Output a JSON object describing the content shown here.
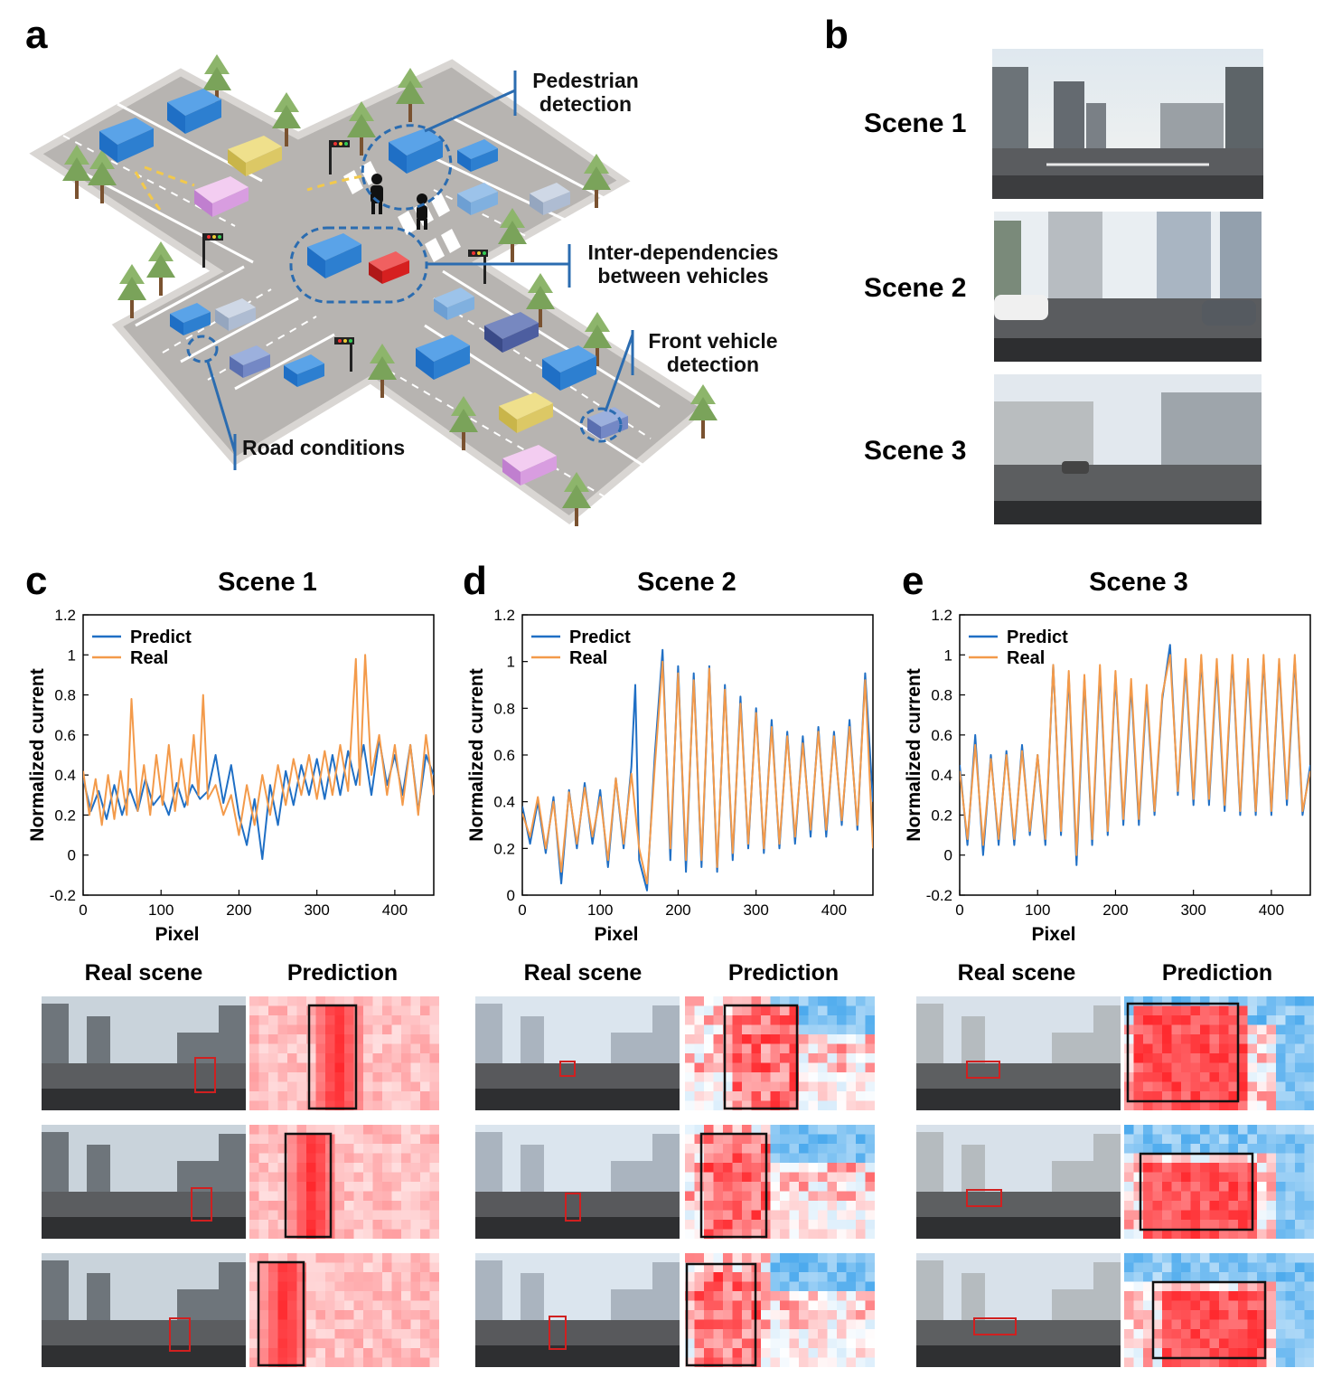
{
  "panels": {
    "a": "a",
    "b": "b",
    "c": "c",
    "d": "d",
    "e": "e"
  },
  "illustration": {
    "callouts": {
      "pedestrian": [
        "Pedestrian",
        "detection"
      ],
      "inter": [
        "Inter-dependencies",
        "between vehicles"
      ],
      "front": [
        "Front vehicle",
        "detection"
      ],
      "road": [
        "Road conditions"
      ]
    },
    "colors": {
      "road": "#b3b0ad",
      "grass": "#e6e6e6",
      "car_blue": "#2d7fd0",
      "car_red": "#d62020",
      "callout_line": "#2b6cb0",
      "arrow": "#f2c94c"
    }
  },
  "scenes_b": [
    "Scene 1",
    "Scene 2",
    "Scene 3"
  ],
  "columns": {
    "real": "Real scene",
    "prediction": "Prediction"
  },
  "colors": {
    "predict": "#1f6fc5",
    "real": "#f39a4a",
    "heat_hot": "#e8282a",
    "heat_cold": "#3a9be8",
    "box_red": "#d02020",
    "box_black": "#111111"
  },
  "chart_data": [
    {
      "type": "line",
      "title": "Scene 1",
      "xlabel": "Pixel",
      "ylabel": "Normalized current",
      "xlim": [
        0,
        450
      ],
      "ylim": [
        -0.2,
        1.2
      ],
      "xticks": [
        0,
        100,
        200,
        300,
        400
      ],
      "yticks": [
        -0.2,
        0,
        0.2,
        0.4,
        0.6,
        0.8,
        1,
        1.2
      ],
      "ytick_labels": [
        "-0.2",
        "0",
        "0.2",
        "0.4",
        "0.6",
        "0.8",
        "1",
        "1.2"
      ],
      "legend": "top-left",
      "series": [
        {
          "name": "Predict",
          "x": [
            0,
            10,
            20,
            30,
            40,
            50,
            60,
            70,
            80,
            90,
            100,
            110,
            120,
            130,
            140,
            150,
            160,
            170,
            180,
            190,
            200,
            210,
            220,
            230,
            240,
            250,
            260,
            270,
            280,
            290,
            300,
            310,
            320,
            330,
            340,
            350,
            360,
            370,
            380,
            390,
            400,
            410,
            420,
            430,
            440,
            450
          ],
          "y": [
            0.38,
            0.22,
            0.32,
            0.18,
            0.35,
            0.2,
            0.33,
            0.22,
            0.38,
            0.25,
            0.3,
            0.2,
            0.36,
            0.24,
            0.35,
            0.28,
            0.32,
            0.5,
            0.26,
            0.45,
            0.2,
            0.05,
            0.28,
            -0.02,
            0.35,
            0.15,
            0.42,
            0.25,
            0.45,
            0.3,
            0.48,
            0.28,
            0.5,
            0.3,
            0.52,
            0.35,
            0.55,
            0.3,
            0.58,
            0.35,
            0.5,
            0.3,
            0.55,
            0.22,
            0.5,
            0.4
          ]
        },
        {
          "name": "Real",
          "x": [
            0,
            8,
            16,
            24,
            32,
            40,
            48,
            56,
            62,
            70,
            78,
            86,
            94,
            102,
            110,
            118,
            126,
            134,
            142,
            148,
            154,
            160,
            170,
            180,
            190,
            200,
            210,
            220,
            230,
            240,
            250,
            260,
            270,
            280,
            290,
            300,
            310,
            320,
            330,
            340,
            350,
            355,
            362,
            370,
            380,
            390,
            400,
            410,
            420,
            430,
            440,
            450
          ],
          "y": [
            0.42,
            0.2,
            0.38,
            0.15,
            0.4,
            0.18,
            0.42,
            0.2,
            0.78,
            0.22,
            0.45,
            0.2,
            0.5,
            0.25,
            0.55,
            0.22,
            0.48,
            0.25,
            0.6,
            0.3,
            0.8,
            0.28,
            0.35,
            0.2,
            0.3,
            0.1,
            0.35,
            0.15,
            0.4,
            0.2,
            0.45,
            0.25,
            0.48,
            0.3,
            0.5,
            0.28,
            0.52,
            0.3,
            0.55,
            0.32,
            0.98,
            0.35,
            1.0,
            0.4,
            0.6,
            0.3,
            0.55,
            0.25,
            0.55,
            0.2,
            0.6,
            0.3
          ]
        }
      ]
    },
    {
      "type": "line",
      "title": "Scene 2",
      "xlabel": "Pixel",
      "ylabel": "Normalized current",
      "xlim": [
        0,
        450
      ],
      "ylim": [
        0,
        1.2
      ],
      "xticks": [
        0,
        100,
        200,
        300,
        400
      ],
      "yticks": [
        0,
        0.2,
        0.4,
        0.6,
        0.8,
        1,
        1.2
      ],
      "ytick_labels": [
        "0",
        "0.2",
        "0.4",
        "0.6",
        "0.8",
        "1",
        "1.2"
      ],
      "legend": "top-left",
      "series": [
        {
          "name": "Predict",
          "x": [
            0,
            10,
            20,
            30,
            40,
            50,
            60,
            70,
            80,
            90,
            100,
            110,
            120,
            130,
            140,
            145,
            150,
            160,
            170,
            180,
            190,
            200,
            210,
            220,
            230,
            240,
            250,
            260,
            270,
            280,
            290,
            300,
            310,
            320,
            330,
            340,
            350,
            360,
            370,
            380,
            390,
            400,
            410,
            420,
            430,
            440,
            450
          ],
          "y": [
            0.38,
            0.22,
            0.4,
            0.18,
            0.42,
            0.05,
            0.45,
            0.2,
            0.48,
            0.22,
            0.45,
            0.12,
            0.5,
            0.2,
            0.55,
            0.9,
            0.15,
            0.02,
            0.6,
            1.05,
            0.15,
            0.98,
            0.1,
            0.95,
            0.12,
            0.98,
            0.1,
            0.9,
            0.15,
            0.85,
            0.2,
            0.8,
            0.18,
            0.75,
            0.2,
            0.7,
            0.22,
            0.68,
            0.25,
            0.72,
            0.25,
            0.7,
            0.3,
            0.75,
            0.28,
            0.95,
            0.4
          ]
        },
        {
          "name": "Real",
          "x": [
            0,
            10,
            20,
            30,
            40,
            50,
            60,
            70,
            80,
            90,
            100,
            110,
            120,
            130,
            140,
            150,
            160,
            170,
            180,
            190,
            200,
            210,
            220,
            230,
            240,
            250,
            260,
            270,
            280,
            290,
            300,
            310,
            320,
            330,
            340,
            350,
            360,
            370,
            380,
            390,
            400,
            410,
            420,
            430,
            440,
            450
          ],
          "y": [
            0.35,
            0.25,
            0.42,
            0.2,
            0.4,
            0.1,
            0.44,
            0.22,
            0.46,
            0.25,
            0.42,
            0.15,
            0.5,
            0.22,
            0.52,
            0.2,
            0.05,
            0.55,
            1.0,
            0.2,
            0.95,
            0.15,
            0.92,
            0.15,
            0.97,
            0.12,
            0.88,
            0.18,
            0.82,
            0.22,
            0.78,
            0.2,
            0.72,
            0.22,
            0.68,
            0.25,
            0.65,
            0.28,
            0.7,
            0.28,
            0.68,
            0.32,
            0.72,
            0.3,
            0.92,
            0.2
          ]
        }
      ]
    },
    {
      "type": "line",
      "title": "Scene 3",
      "xlabel": "Pixel",
      "ylabel": "Normalized current",
      "xlim": [
        0,
        450
      ],
      "ylim": [
        -0.2,
        1.2
      ],
      "xticks": [
        0,
        100,
        200,
        300,
        400
      ],
      "yticks": [
        -0.2,
        0,
        0.2,
        0.4,
        0.6,
        0.8,
        1,
        1.2
      ],
      "ytick_labels": [
        "-0.2",
        "0",
        "0.2",
        "0.4",
        "0.6",
        "0.8",
        "1",
        "1.2"
      ],
      "legend": "top-left",
      "series": [
        {
          "name": "Predict",
          "x": [
            0,
            10,
            20,
            30,
            40,
            50,
            60,
            70,
            80,
            90,
            100,
            110,
            120,
            130,
            140,
            150,
            160,
            170,
            180,
            190,
            200,
            210,
            220,
            230,
            240,
            250,
            260,
            270,
            280,
            290,
            300,
            310,
            320,
            330,
            340,
            350,
            360,
            370,
            380,
            390,
            400,
            410,
            420,
            430,
            440,
            450
          ],
          "y": [
            0.45,
            0.05,
            0.6,
            0.0,
            0.5,
            0.05,
            0.52,
            0.05,
            0.55,
            0.1,
            0.5,
            0.05,
            0.95,
            0.1,
            0.9,
            -0.05,
            0.88,
            0.05,
            0.92,
            0.1,
            0.9,
            0.15,
            0.85,
            0.15,
            0.82,
            0.2,
            0.78,
            1.05,
            0.3,
            0.95,
            0.25,
            0.98,
            0.25,
            0.95,
            0.22,
            0.98,
            0.2,
            0.95,
            0.2,
            0.98,
            0.2,
            0.96,
            0.25,
            0.98,
            0.2,
            0.45
          ]
        },
        {
          "name": "Real",
          "x": [
            0,
            10,
            20,
            30,
            40,
            50,
            60,
            70,
            80,
            90,
            100,
            110,
            120,
            130,
            140,
            150,
            160,
            170,
            180,
            190,
            200,
            210,
            220,
            230,
            240,
            250,
            260,
            270,
            280,
            290,
            300,
            310,
            320,
            330,
            340,
            350,
            360,
            370,
            380,
            390,
            400,
            410,
            420,
            430,
            440,
            450
          ],
          "y": [
            0.42,
            0.08,
            0.55,
            0.05,
            0.48,
            0.08,
            0.5,
            0.08,
            0.52,
            0.12,
            0.5,
            0.08,
            0.95,
            0.12,
            0.92,
            0.0,
            0.9,
            0.08,
            0.95,
            0.12,
            0.92,
            0.18,
            0.88,
            0.18,
            0.85,
            0.22,
            0.8,
            1.0,
            0.32,
            0.98,
            0.28,
            1.0,
            0.28,
            0.98,
            0.25,
            1.0,
            0.22,
            0.98,
            0.22,
            1.0,
            0.22,
            0.98,
            0.28,
            1.0,
            0.22,
            0.42
          ]
        }
      ]
    }
  ]
}
